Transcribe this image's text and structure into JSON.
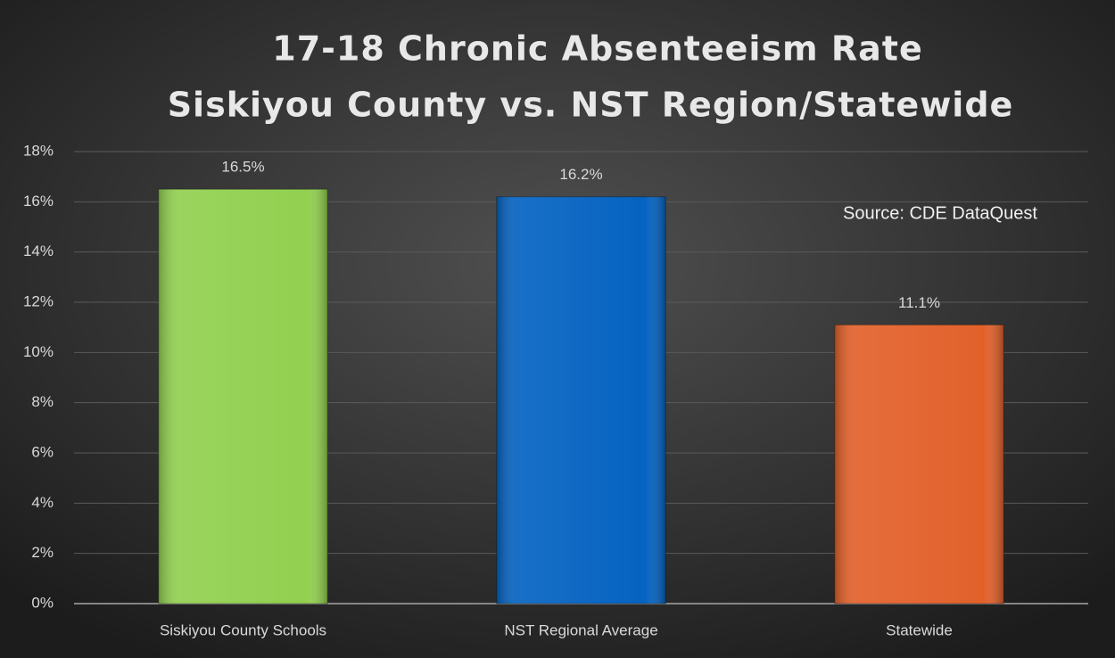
{
  "chart_data": {
    "type": "bar",
    "title": "17-18 Chronic Absenteeism Rate",
    "subtitle": "Siskiyou County vs. NST Region/Statewide",
    "categories": [
      "Siskiyou  County Schools",
      "NST Regional Average",
      "Statewide"
    ],
    "values": [
      16.5,
      16.2,
      11.1
    ],
    "value_labels": [
      "16.5%",
      "16.2%",
      "11.1%"
    ],
    "colors": [
      "#92d050",
      "#0563c1",
      "#e2612b"
    ],
    "ylim": [
      0,
      18
    ],
    "yticks": [
      {
        "value": 0,
        "label": "0%"
      },
      {
        "value": 2,
        "label": "2%"
      },
      {
        "value": 4,
        "label": "4%"
      },
      {
        "value": 6,
        "label": "6%"
      },
      {
        "value": 8,
        "label": "8%"
      },
      {
        "value": 10,
        "label": "10%"
      },
      {
        "value": 12,
        "label": "12%"
      },
      {
        "value": 14,
        "label": "14%"
      },
      {
        "value": 16,
        "label": "16%"
      },
      {
        "value": 18,
        "label": "18%"
      }
    ],
    "grid": true,
    "annotation": "Source:  CDE DataQuest"
  }
}
